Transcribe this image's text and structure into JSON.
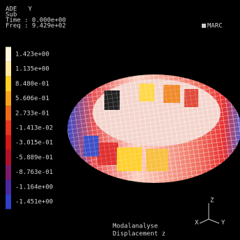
{
  "header": {
    "lines": [
      "ADE   Y",
      "Sub",
      "Time : 0.000e+00",
      "Freq : 9.429e+02"
    ],
    "logo": "MARC"
  },
  "legend": {
    "labels": [
      "1.423e+00",
      "1.135e+00",
      "8.480e-01",
      "5.606e-01",
      "2.733e-01",
      "-1.413e-02",
      "-3.015e-01",
      "-5.889e-01",
      "-8.763e-01",
      "-1.164e+00",
      "-1.451e+00"
    ],
    "colors": [
      "#fff4dc",
      "#ffe9a0",
      "#ffd020",
      "#f7a21a",
      "#f06a1c",
      "#e8351e",
      "#d01818",
      "#b01028",
      "#7a1c6a",
      "#4a2aa0",
      "#3040c8"
    ]
  },
  "footer": {
    "lines": [
      "Modalanalyse",
      "Displacement z"
    ]
  },
  "triad": {
    "z": "Z",
    "x": "X",
    "y": "Y"
  }
}
